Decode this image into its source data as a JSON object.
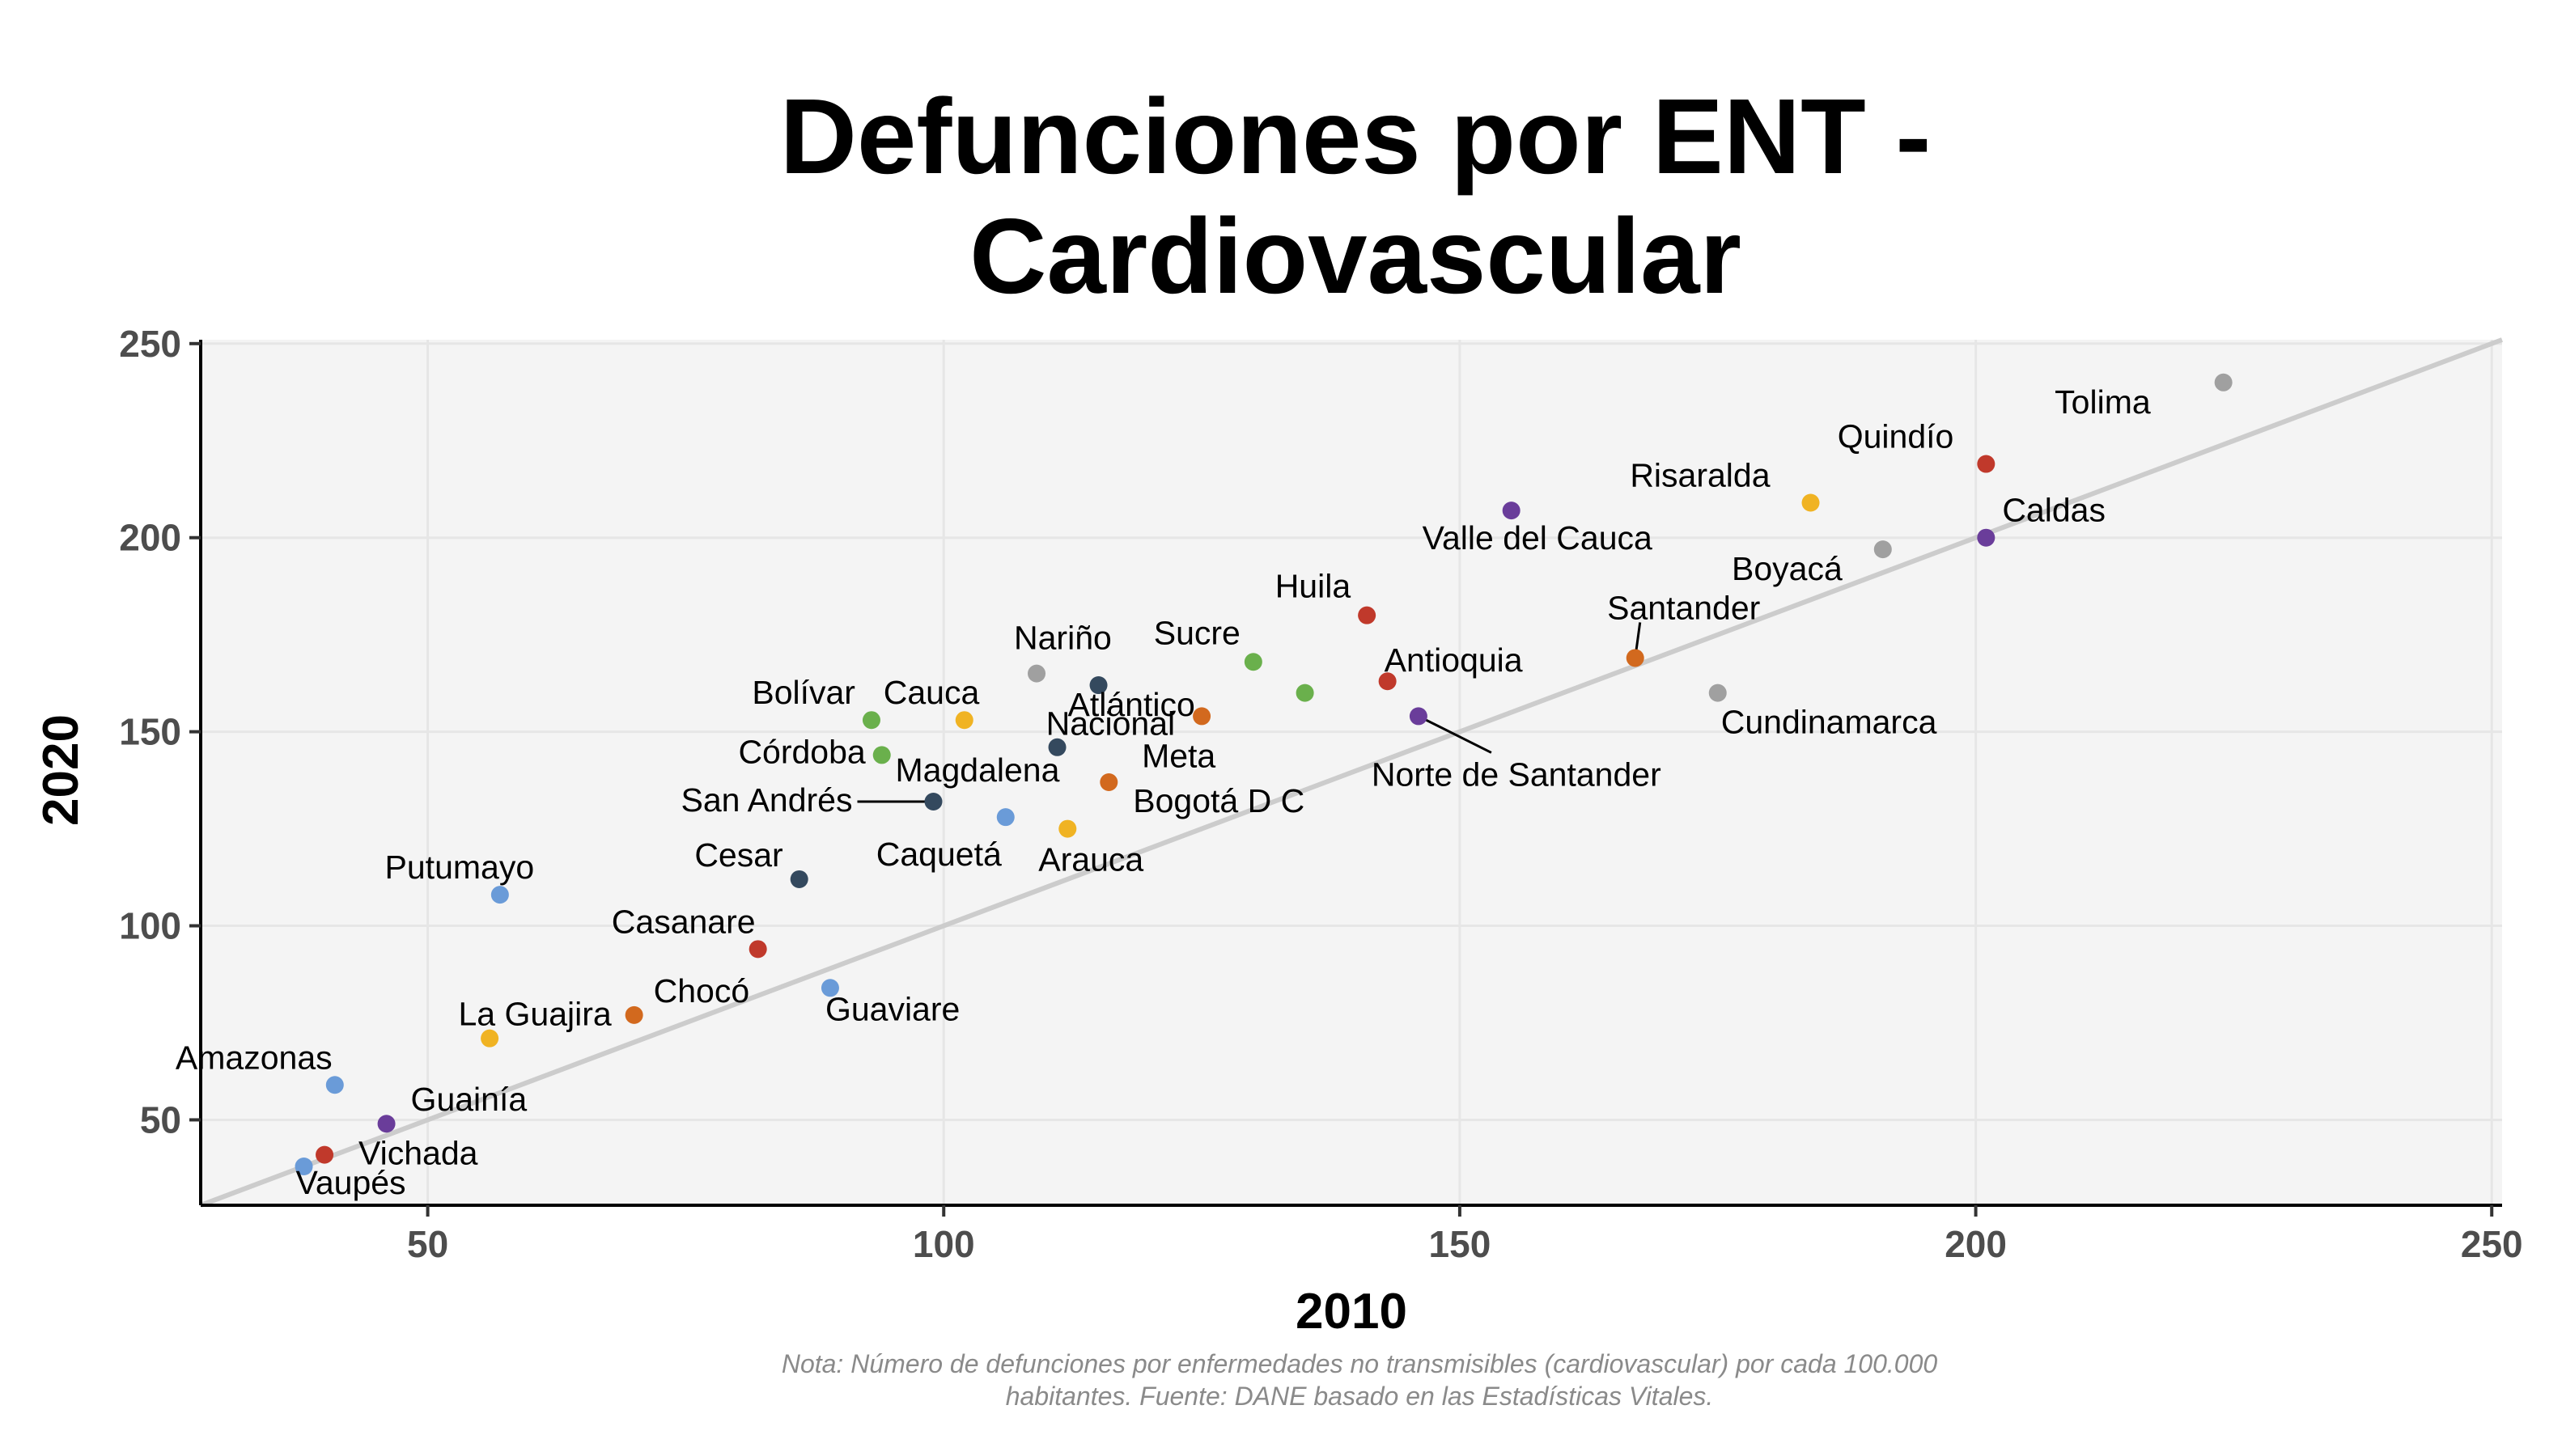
{
  "title_lines": [
    "Defunciones por ENT -",
    "Cardiovascular"
  ],
  "note_lines": [
    "Nota: Número de defunciones por enfermedades no transmisibles (cardiovascular) por cada 100.000",
    "habitantes. Fuente: DANE basado en las Estadísticas Vitales."
  ],
  "colors": {
    "panel_bg": "#f4f4f4",
    "grid": "#e6e6e6",
    "reference_line": "#cccccc",
    "red": "#c0392b",
    "orange": "#d2691e",
    "yellow": "#f0b323",
    "green": "#6ab04c",
    "gray": "#a0a0a0",
    "navy": "#34495e",
    "light_blue": "#6a9bd8",
    "purple": "#6a3d9a"
  },
  "chart_data": {
    "type": "scatter",
    "xlabel": "2010",
    "ylabel": "2020",
    "xlim": [
      28,
      251
    ],
    "ylim": [
      28,
      251
    ],
    "x_ticks": [
      50,
      100,
      150,
      200,
      250
    ],
    "y_ticks": [
      50,
      100,
      150,
      200,
      250
    ],
    "grid": true,
    "reference_line": "y = x",
    "points": [
      {
        "name": "Tolima",
        "x": 224,
        "y": 240,
        "color": "gray"
      },
      {
        "name": "Quindío",
        "x": 201,
        "y": 219,
        "color": "red"
      },
      {
        "name": "Risaralda",
        "x": 184,
        "y": 209,
        "color": "yellow"
      },
      {
        "name": "Caldas",
        "x": 201,
        "y": 200,
        "color": "purple"
      },
      {
        "name": "Boyacá",
        "x": 191,
        "y": 197,
        "color": "gray"
      },
      {
        "name": "Valle del Cauca",
        "x": 155,
        "y": 207,
        "color": "purple"
      },
      {
        "name": "Huila",
        "x": 141,
        "y": 180,
        "color": "red"
      },
      {
        "name": "Santander",
        "x": 167,
        "y": 169,
        "color": "orange"
      },
      {
        "name": "Antioquia",
        "x": 143,
        "y": 163,
        "color": "red"
      },
      {
        "name": "Cundinamarca",
        "x": 175,
        "y": 160,
        "color": "gray"
      },
      {
        "name": "Sucre",
        "x": 130,
        "y": 168,
        "color": "green"
      },
      {
        "name": "Nacional",
        "x": 135,
        "y": 160,
        "color": "green"
      },
      {
        "name": "Norte de Santander",
        "x": 146,
        "y": 154,
        "color": "purple"
      },
      {
        "name": "Nariño",
        "x": 109,
        "y": 165,
        "color": "gray"
      },
      {
        "name": "Atlántico",
        "x": 115,
        "y": 162,
        "color": "navy"
      },
      {
        "name": "Bolívar",
        "x": 93,
        "y": 153,
        "color": "green"
      },
      {
        "name": "Cauca",
        "x": 102,
        "y": 153,
        "color": "yellow"
      },
      {
        "name": "Meta",
        "x": 125,
        "y": 154,
        "color": "orange"
      },
      {
        "name": "Córdoba",
        "x": 94,
        "y": 144,
        "color": "green"
      },
      {
        "name": "Magdalena",
        "x": 111,
        "y": 146,
        "color": "navy"
      },
      {
        "name": "Bogotá D C",
        "x": 116,
        "y": 137,
        "color": "orange"
      },
      {
        "name": "San Andrés",
        "x": 99,
        "y": 132,
        "color": "navy"
      },
      {
        "name": "Caquetá",
        "x": 106,
        "y": 128,
        "color": "light_blue"
      },
      {
        "name": "Arauca",
        "x": 112,
        "y": 125,
        "color": "yellow"
      },
      {
        "name": "Cesar",
        "x": 86,
        "y": 112,
        "color": "navy"
      },
      {
        "name": "Putumayo",
        "x": 57,
        "y": 108,
        "color": "light_blue"
      },
      {
        "name": "Casanare",
        "x": 82,
        "y": 94,
        "color": "red"
      },
      {
        "name": "Guaviare",
        "x": 89,
        "y": 84,
        "color": "light_blue"
      },
      {
        "name": "Chocó",
        "x": 70,
        "y": 77,
        "color": "orange"
      },
      {
        "name": "La Guajira",
        "x": 56,
        "y": 71,
        "color": "yellow"
      },
      {
        "name": "Amazonas",
        "x": 41,
        "y": 59,
        "color": "light_blue"
      },
      {
        "name": "Guainía",
        "x": 46,
        "y": 49,
        "color": "purple"
      },
      {
        "name": "Vichada",
        "x": 40,
        "y": 41,
        "color": "red"
      },
      {
        "name": "Vaupés",
        "x": 38,
        "y": 38,
        "color": "light_blue"
      }
    ]
  }
}
